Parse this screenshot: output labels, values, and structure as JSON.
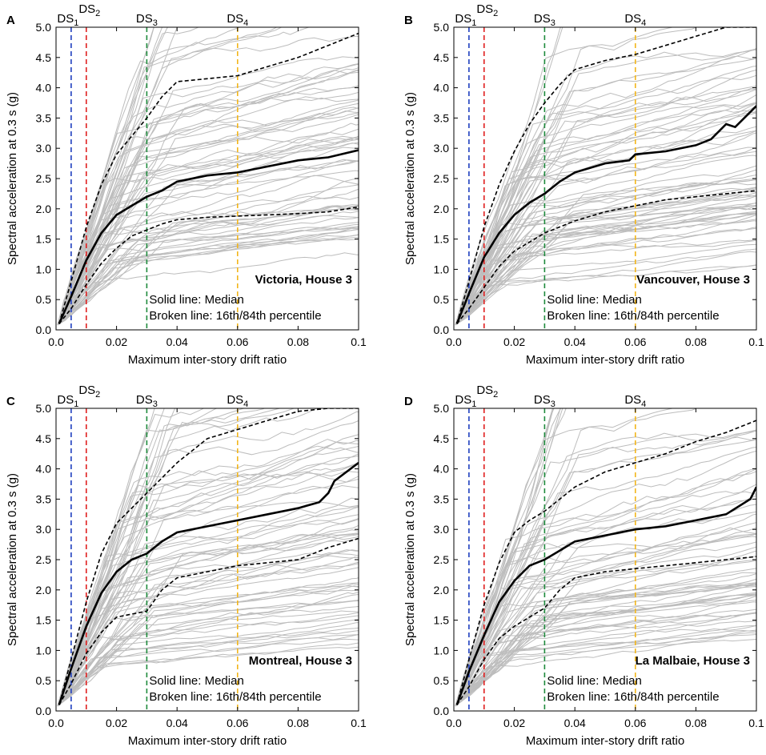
{
  "chart_data": [
    {
      "type": "line",
      "panel": "A",
      "title": "Victoria, House 3",
      "xlabel": "Maximum inter-story drift ratio",
      "ylabel": "Spectral acceleration at 0.3 s (g)",
      "xlim": [
        0,
        0.1
      ],
      "ylim": [
        0,
        5
      ],
      "xticks": [
        0.0,
        0.02,
        0.04,
        0.06,
        0.08,
        0.1
      ],
      "xticklabels": [
        "0.0",
        "0.02",
        "0.04",
        "0.06",
        "0.08",
        "0.1"
      ],
      "yticks": [
        0.0,
        0.5,
        1.0,
        1.5,
        2.0,
        2.5,
        3.0,
        3.5,
        4.0,
        4.5,
        5.0
      ],
      "yticklabels": [
        "0.0",
        "0.5",
        "1.0",
        "1.5",
        "2.0",
        "2.5",
        "3.0",
        "3.5",
        "4.0",
        "4.5",
        "5.0"
      ],
      "thresholds": [
        {
          "name": "DS",
          "sub": "1",
          "x": 0.005,
          "color": "#1f3fbf"
        },
        {
          "name": "DS",
          "sub": "2",
          "x": 0.01,
          "color": "#e02020"
        },
        {
          "name": "DS",
          "sub": "3",
          "x": 0.03,
          "color": "#1e8a3c"
        },
        {
          "name": "DS",
          "sub": "4",
          "x": 0.06,
          "color": "#f2b61c"
        }
      ],
      "legend": [
        "Solid line: Median",
        "Broken line: 16th/84th percentile"
      ],
      "series": [
        {
          "name": "Median",
          "style": "solid",
          "x": [
            0.001,
            0.005,
            0.01,
            0.015,
            0.02,
            0.025,
            0.03,
            0.035,
            0.04,
            0.05,
            0.06,
            0.07,
            0.08,
            0.09,
            0.1
          ],
          "y": [
            0.1,
            0.55,
            1.15,
            1.6,
            1.9,
            2.05,
            2.2,
            2.3,
            2.45,
            2.55,
            2.6,
            2.7,
            2.8,
            2.85,
            2.97
          ]
        },
        {
          "name": "84th percentile",
          "style": "dashed",
          "x": [
            0.001,
            0.005,
            0.01,
            0.015,
            0.02,
            0.025,
            0.03,
            0.035,
            0.04,
            0.05,
            0.06,
            0.07,
            0.08,
            0.09,
            0.1
          ],
          "y": [
            0.1,
            0.8,
            1.7,
            2.4,
            2.9,
            3.2,
            3.5,
            3.85,
            4.1,
            4.15,
            4.2,
            4.35,
            4.5,
            4.7,
            4.9
          ]
        },
        {
          "name": "16th percentile",
          "style": "dashed",
          "x": [
            0.001,
            0.005,
            0.01,
            0.015,
            0.02,
            0.025,
            0.03,
            0.035,
            0.04,
            0.05,
            0.06,
            0.07,
            0.08,
            0.09,
            0.1
          ],
          "y": [
            0.1,
            0.35,
            0.75,
            1.1,
            1.35,
            1.55,
            1.65,
            1.75,
            1.82,
            1.86,
            1.88,
            1.9,
            1.92,
            1.95,
            2.03
          ]
        }
      ]
    },
    {
      "type": "line",
      "panel": "B",
      "title": "Vancouver, House 3",
      "xlabel": "Maximum inter-story drift ratio",
      "ylabel": "Spectral acceleration at 0.3 s (g)",
      "xlim": [
        0,
        0.1
      ],
      "ylim": [
        0,
        5
      ],
      "xticks": [
        0.0,
        0.02,
        0.04,
        0.06,
        0.08,
        0.1
      ],
      "xticklabels": [
        "0.0",
        "0.02",
        "0.04",
        "0.06",
        "0.08",
        "0.1"
      ],
      "yticks": [
        0.0,
        0.5,
        1.0,
        1.5,
        2.0,
        2.5,
        3.0,
        3.5,
        4.0,
        4.5,
        5.0
      ],
      "yticklabels": [
        "0.0",
        "0.5",
        "1.0",
        "1.5",
        "2.0",
        "2.5",
        "3.0",
        "3.5",
        "4.0",
        "4.5",
        "5.0"
      ],
      "thresholds": [
        {
          "name": "DS",
          "sub": "1",
          "x": 0.005,
          "color": "#1f3fbf"
        },
        {
          "name": "DS",
          "sub": "2",
          "x": 0.01,
          "color": "#e02020"
        },
        {
          "name": "DS",
          "sub": "3",
          "x": 0.03,
          "color": "#1e8a3c"
        },
        {
          "name": "DS",
          "sub": "4",
          "x": 0.06,
          "color": "#f2b61c"
        }
      ],
      "legend": [
        "Solid line: Median",
        "Broken line: 16th/84th percentile"
      ],
      "series": [
        {
          "name": "Median",
          "style": "solid",
          "x": [
            0.001,
            0.005,
            0.01,
            0.015,
            0.02,
            0.025,
            0.03,
            0.035,
            0.04,
            0.05,
            0.058,
            0.06,
            0.07,
            0.08,
            0.085,
            0.09,
            0.093,
            0.1
          ],
          "y": [
            0.1,
            0.6,
            1.2,
            1.6,
            1.9,
            2.1,
            2.25,
            2.45,
            2.6,
            2.75,
            2.8,
            2.9,
            2.95,
            3.05,
            3.15,
            3.4,
            3.35,
            3.7
          ]
        },
        {
          "name": "84th percentile",
          "style": "dashed",
          "x": [
            0.001,
            0.005,
            0.01,
            0.015,
            0.02,
            0.025,
            0.03,
            0.035,
            0.04,
            0.05,
            0.06,
            0.07,
            0.08,
            0.09,
            0.1
          ],
          "y": [
            0.1,
            0.8,
            1.7,
            2.4,
            2.95,
            3.4,
            3.75,
            4.05,
            4.3,
            4.45,
            4.55,
            4.7,
            4.85,
            5.0,
            5.0
          ]
        },
        {
          "name": "16th percentile",
          "style": "dashed",
          "x": [
            0.001,
            0.005,
            0.01,
            0.015,
            0.02,
            0.025,
            0.03,
            0.035,
            0.04,
            0.05,
            0.06,
            0.07,
            0.08,
            0.09,
            0.1
          ],
          "y": [
            0.1,
            0.35,
            0.7,
            1.05,
            1.3,
            1.45,
            1.6,
            1.7,
            1.8,
            1.95,
            2.05,
            2.15,
            2.2,
            2.25,
            2.3
          ]
        }
      ]
    },
    {
      "type": "line",
      "panel": "C",
      "title": "Montreal, House 3",
      "xlabel": "Maximum inter-story drift ratio",
      "ylabel": "Spectral acceleration at 0.3 s (g)",
      "xlim": [
        0,
        0.1
      ],
      "ylim": [
        0,
        5
      ],
      "xticks": [
        0.0,
        0.02,
        0.04,
        0.06,
        0.08,
        0.1
      ],
      "xticklabels": [
        "0.0",
        "0.02",
        "0.04",
        "0.06",
        "0.08",
        "0.1"
      ],
      "yticks": [
        0.0,
        0.5,
        1.0,
        1.5,
        2.0,
        2.5,
        3.0,
        3.5,
        4.0,
        4.5,
        5.0
      ],
      "yticklabels": [
        "0.0",
        "0.5",
        "1.0",
        "1.5",
        "2.0",
        "2.5",
        "3.0",
        "3.5",
        "4.0",
        "4.5",
        "5.0"
      ],
      "thresholds": [
        {
          "name": "DS",
          "sub": "1",
          "x": 0.005,
          "color": "#1f3fbf"
        },
        {
          "name": "DS",
          "sub": "2",
          "x": 0.01,
          "color": "#e02020"
        },
        {
          "name": "DS",
          "sub": "3",
          "x": 0.03,
          "color": "#1e8a3c"
        },
        {
          "name": "DS",
          "sub": "4",
          "x": 0.06,
          "color": "#f2b61c"
        }
      ],
      "legend": [
        "Solid line: Median",
        "Broken line: 16th/84th percentile"
      ],
      "series": [
        {
          "name": "Median",
          "style": "solid",
          "x": [
            0.001,
            0.005,
            0.01,
            0.015,
            0.02,
            0.025,
            0.03,
            0.035,
            0.04,
            0.05,
            0.06,
            0.07,
            0.08,
            0.087,
            0.09,
            0.092,
            0.1
          ],
          "y": [
            0.1,
            0.7,
            1.4,
            1.95,
            2.3,
            2.5,
            2.6,
            2.8,
            2.95,
            3.05,
            3.15,
            3.25,
            3.35,
            3.45,
            3.6,
            3.8,
            4.1
          ]
        },
        {
          "name": "84th percentile",
          "style": "dashed",
          "x": [
            0.001,
            0.005,
            0.01,
            0.015,
            0.02,
            0.025,
            0.03,
            0.035,
            0.04,
            0.05,
            0.06,
            0.07,
            0.08,
            0.09,
            0.1
          ],
          "y": [
            0.1,
            0.85,
            1.8,
            2.6,
            3.1,
            3.35,
            3.6,
            3.85,
            4.1,
            4.5,
            4.65,
            4.8,
            4.95,
            5.0,
            5.0
          ]
        },
        {
          "name": "16th percentile",
          "style": "dashed",
          "x": [
            0.001,
            0.005,
            0.01,
            0.015,
            0.02,
            0.025,
            0.03,
            0.035,
            0.04,
            0.05,
            0.06,
            0.07,
            0.08,
            0.09,
            0.1
          ],
          "y": [
            0.1,
            0.45,
            0.95,
            1.3,
            1.55,
            1.6,
            1.65,
            2.0,
            2.2,
            2.3,
            2.4,
            2.45,
            2.5,
            2.7,
            2.85
          ]
        }
      ]
    },
    {
      "type": "line",
      "panel": "D",
      "title": "La Malbaie, House 3",
      "xlabel": "Maximum inter-story drift ratio",
      "ylabel": "Spectral acceleration at 0.3 s (g)",
      "xlim": [
        0,
        0.1
      ],
      "ylim": [
        0,
        5
      ],
      "xticks": [
        0.0,
        0.02,
        0.04,
        0.06,
        0.08,
        0.1
      ],
      "xticklabels": [
        "0.0",
        "0.02",
        "0.04",
        "0.06",
        "0.08",
        "0.1"
      ],
      "yticks": [
        0.0,
        0.5,
        1.0,
        1.5,
        2.0,
        2.5,
        3.0,
        3.5,
        4.0,
        4.5,
        5.0
      ],
      "yticklabels": [
        "0.0",
        "0.5",
        "1.0",
        "1.5",
        "2.0",
        "2.5",
        "3.0",
        "3.5",
        "4.0",
        "4.5",
        "5.0"
      ],
      "thresholds": [
        {
          "name": "DS",
          "sub": "1",
          "x": 0.005,
          "color": "#1f3fbf"
        },
        {
          "name": "DS",
          "sub": "2",
          "x": 0.01,
          "color": "#e02020"
        },
        {
          "name": "DS",
          "sub": "3",
          "x": 0.03,
          "color": "#1e8a3c"
        },
        {
          "name": "DS",
          "sub": "4",
          "x": 0.06,
          "color": "#f2b61c"
        }
      ],
      "legend": [
        "Solid line: Median",
        "Broken line: 16th/84th percentile"
      ],
      "series": [
        {
          "name": "Median",
          "style": "solid",
          "x": [
            0.001,
            0.005,
            0.01,
            0.015,
            0.02,
            0.025,
            0.03,
            0.035,
            0.04,
            0.05,
            0.06,
            0.07,
            0.08,
            0.09,
            0.098,
            0.1
          ],
          "y": [
            0.1,
            0.65,
            1.25,
            1.8,
            2.15,
            2.4,
            2.5,
            2.65,
            2.8,
            2.9,
            3.0,
            3.05,
            3.15,
            3.25,
            3.5,
            3.7
          ]
        },
        {
          "name": "84th percentile",
          "style": "dashed",
          "x": [
            0.001,
            0.005,
            0.01,
            0.015,
            0.02,
            0.025,
            0.03,
            0.035,
            0.04,
            0.05,
            0.06,
            0.07,
            0.08,
            0.09,
            0.1
          ],
          "y": [
            0.1,
            0.85,
            1.75,
            2.45,
            2.95,
            3.15,
            3.3,
            3.5,
            3.7,
            3.95,
            4.1,
            4.25,
            4.45,
            4.6,
            4.8
          ]
        },
        {
          "name": "16th percentile",
          "style": "dashed",
          "x": [
            0.001,
            0.005,
            0.01,
            0.015,
            0.02,
            0.025,
            0.03,
            0.035,
            0.04,
            0.05,
            0.06,
            0.07,
            0.08,
            0.09,
            0.1
          ],
          "y": [
            0.1,
            0.4,
            0.85,
            1.2,
            1.4,
            1.55,
            1.7,
            2.0,
            2.2,
            2.3,
            2.35,
            2.4,
            2.45,
            2.5,
            2.55
          ]
        }
      ]
    }
  ]
}
